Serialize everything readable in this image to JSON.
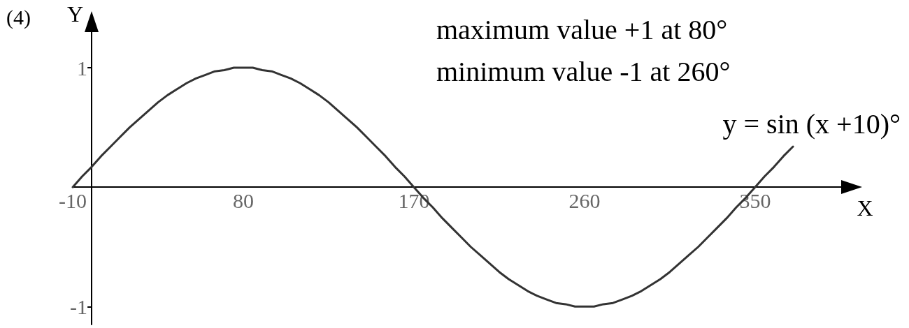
{
  "chart_data": {
    "type": "line",
    "title": "(4)",
    "xlabel": "X",
    "ylabel": "Y",
    "annotations": [
      "maximum value +1 at 80°",
      "minimum value -1 at 260°"
    ],
    "series": [
      {
        "name": "y = sin (x +10)°",
        "color": "#333333",
        "x": [
          -10,
          -5,
          0,
          5,
          10,
          15,
          20,
          25,
          30,
          35,
          40,
          45,
          50,
          55,
          60,
          65,
          70,
          75,
          80,
          85,
          90,
          95,
          100,
          105,
          110,
          115,
          120,
          125,
          130,
          135,
          140,
          145,
          150,
          155,
          160,
          165,
          170,
          175,
          180,
          185,
          190,
          195,
          200,
          205,
          210,
          215,
          220,
          225,
          230,
          235,
          240,
          245,
          250,
          255,
          260,
          265,
          270,
          275,
          280,
          285,
          290,
          295,
          300,
          305,
          310,
          315,
          320,
          325,
          330,
          335,
          340,
          345,
          350,
          355,
          360,
          365,
          370
        ],
        "values": [
          0,
          0.09,
          0.17,
          0.26,
          0.34,
          0.42,
          0.5,
          0.57,
          0.64,
          0.71,
          0.77,
          0.82,
          0.87,
          0.91,
          0.94,
          0.97,
          0.98,
          1,
          1,
          1,
          0.98,
          0.97,
          0.94,
          0.91,
          0.87,
          0.82,
          0.77,
          0.71,
          0.64,
          0.57,
          0.5,
          0.42,
          0.34,
          0.26,
          0.17,
          0.09,
          0,
          -0.09,
          -0.17,
          -0.26,
          -0.34,
          -0.42,
          -0.5,
          -0.57,
          -0.64,
          -0.71,
          -0.77,
          -0.82,
          -0.87,
          -0.91,
          -0.94,
          -0.97,
          -0.98,
          -1,
          -1,
          -1,
          -0.98,
          -0.97,
          -0.94,
          -0.91,
          -0.87,
          -0.82,
          -0.77,
          -0.71,
          -0.64,
          -0.57,
          -0.5,
          -0.42,
          -0.34,
          -0.26,
          -0.17,
          -0.09,
          0,
          0.09,
          0.17,
          0.26,
          0.34
        ]
      }
    ],
    "xlim": [
      -10,
      405
    ],
    "ylim": [
      -1.15,
      1.45
    ],
    "xticks": [
      -10,
      80,
      170,
      260,
      350
    ],
    "yticks": [
      -1,
      1
    ],
    "grid": false,
    "marker": "none",
    "line_style": "solid"
  }
}
